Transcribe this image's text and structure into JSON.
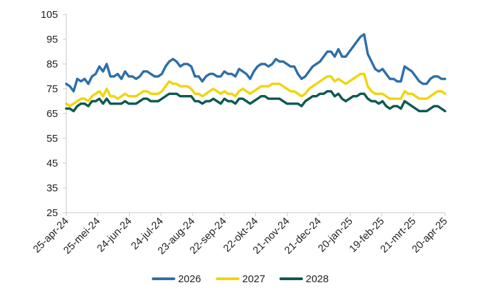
{
  "chart_data": {
    "type": "line",
    "title": "",
    "xlabel": "",
    "ylabel": "",
    "x_start": "25-apr-24",
    "x_end": "20-apr-25",
    "xticks": [
      "25-apr-24",
      "25-mei-24",
      "24-jun-24",
      "24-jul-24",
      "23-aug-24",
      "22-sep-24",
      "22-okt-24",
      "21-nov-24",
      "21-dec-24",
      "20-jan-25",
      "19-feb-25",
      "21-mrt-25",
      "20-apr-25"
    ],
    "yticks": [
      25,
      35,
      45,
      55,
      65,
      75,
      85,
      95,
      105
    ],
    "ylim": [
      25,
      105
    ],
    "grid": false,
    "legend_position": "bottom",
    "series": [
      {
        "name": "2026",
        "color": "#2e6fa9",
        "values": [
          77,
          76,
          74,
          79,
          78,
          79,
          77,
          80,
          81,
          84,
          82,
          85,
          80,
          80,
          81,
          79,
          82,
          80,
          80,
          79,
          80,
          82,
          82,
          81,
          80,
          80,
          81,
          84,
          86,
          87,
          86,
          84,
          85,
          85,
          84,
          80,
          80,
          78,
          80,
          81,
          81,
          80,
          80,
          82,
          81,
          81,
          80,
          83,
          82,
          81,
          79,
          82,
          84,
          85,
          85,
          84,
          85,
          87,
          86,
          86,
          85,
          84,
          84,
          81,
          79,
          80,
          82,
          84,
          85,
          86,
          88,
          90,
          90,
          88,
          91,
          88,
          88,
          90,
          92,
          94,
          96,
          97,
          89,
          86,
          83,
          82,
          83,
          81,
          79,
          79,
          78,
          78,
          84,
          83,
          82,
          80,
          78,
          77,
          77,
          79,
          80,
          80,
          79,
          79
        ]
      },
      {
        "name": "2027",
        "color": "#f2d40c",
        "values": [
          69,
          68,
          69,
          70,
          71,
          71,
          70,
          72,
          73,
          74,
          72,
          75,
          72,
          72,
          71,
          72,
          73,
          72,
          72,
          72,
          73,
          74,
          74,
          73,
          73,
          73,
          74,
          76,
          78,
          77,
          77,
          76,
          76,
          76,
          75,
          73,
          73,
          72,
          73,
          74,
          75,
          74,
          73,
          74,
          73,
          73,
          72,
          74,
          75,
          74,
          73,
          74,
          75,
          76,
          76,
          76,
          77,
          77,
          77,
          76,
          75,
          74,
          74,
          73,
          72,
          73,
          75,
          76,
          77,
          78,
          79,
          80,
          80,
          78,
          79,
          78,
          77,
          78,
          79,
          80,
          81,
          81,
          76,
          74,
          73,
          73,
          73,
          72,
          71,
          71,
          71,
          71,
          74,
          73,
          73,
          72,
          71,
          71,
          71,
          72,
          73,
          74,
          74,
          73
        ]
      },
      {
        "name": "2028",
        "color": "#0d5a50",
        "values": [
          67,
          67,
          66,
          68,
          69,
          69,
          68,
          70,
          70,
          71,
          69,
          71,
          69,
          69,
          69,
          69,
          70,
          69,
          69,
          69,
          70,
          71,
          71,
          70,
          70,
          70,
          71,
          72,
          73,
          73,
          73,
          72,
          72,
          72,
          72,
          70,
          70,
          69,
          70,
          70,
          71,
          70,
          69,
          71,
          70,
          70,
          69,
          71,
          71,
          70,
          69,
          70,
          71,
          72,
          72,
          71,
          71,
          71,
          71,
          70,
          69,
          69,
          69,
          69,
          68,
          70,
          71,
          72,
          72,
          73,
          73,
          74,
          74,
          72,
          73,
          71,
          70,
          71,
          72,
          72,
          73,
          73,
          71,
          70,
          70,
          69,
          70,
          68,
          67,
          68,
          68,
          67,
          70,
          69,
          68,
          67,
          66,
          66,
          66,
          67,
          68,
          68,
          67,
          66
        ]
      }
    ]
  }
}
